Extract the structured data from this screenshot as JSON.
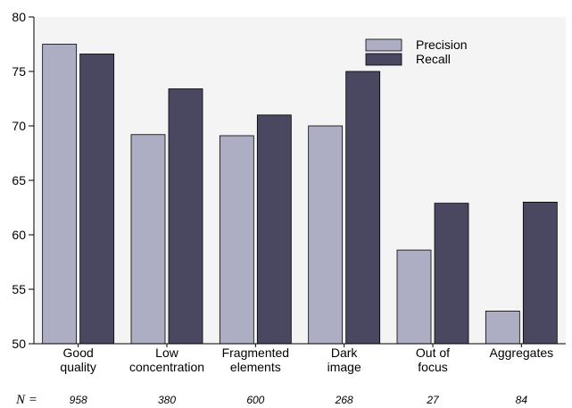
{
  "chart_data": {
    "type": "bar",
    "categories": [
      [
        "Good",
        "quality"
      ],
      [
        "Low",
        "concentration"
      ],
      [
        "Fragmented",
        "elements"
      ],
      [
        "Dark",
        "image"
      ],
      [
        "Out of",
        "focus"
      ],
      [
        "Aggregates"
      ]
    ],
    "series": [
      {
        "name": "Precision",
        "values": [
          77.5,
          69.2,
          69.1,
          70.0,
          58.6,
          53.0
        ],
        "color": "#adadc4"
      },
      {
        "name": "Recall",
        "values": [
          76.6,
          73.4,
          71.0,
          75.0,
          62.9,
          63.0
        ],
        "color": "#4a4760"
      }
    ],
    "n_prefix": "N =",
    "n_values": [
      "958",
      "380",
      "600",
      "268",
      "27",
      "84"
    ],
    "ylim": [
      50,
      80
    ],
    "yticks": [
      50,
      55,
      60,
      65,
      70,
      75,
      80
    ],
    "grid": false,
    "legend_position": "top-right",
    "plot_background": "#f4f4f4"
  }
}
